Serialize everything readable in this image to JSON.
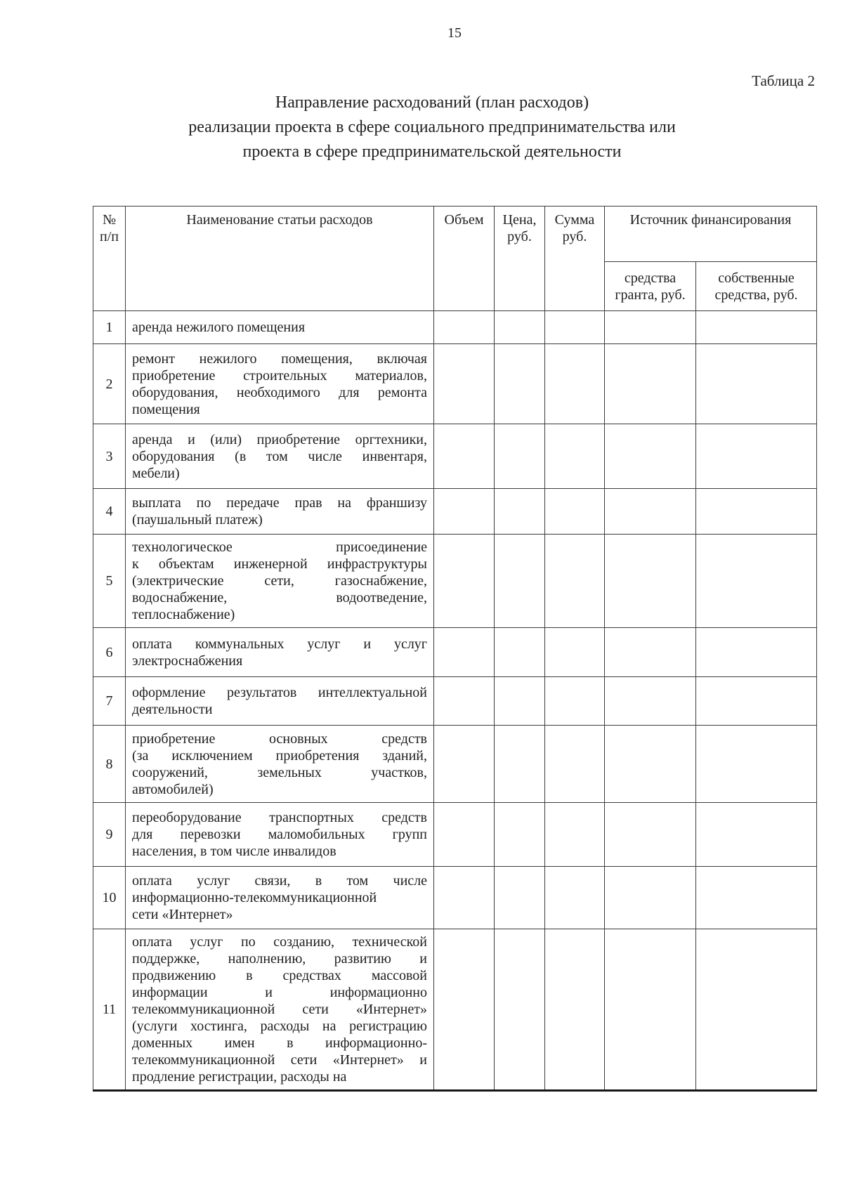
{
  "page": {
    "number": "15",
    "table_label": "Таблица 2"
  },
  "title": {
    "lines": [
      "Направление расходований (план расходов)",
      "реализации проекта в сфере социального предпринимательства или",
      "проекта в сфере предпринимательской деятельности"
    ]
  },
  "table": {
    "header": {
      "num": "№ п/п",
      "name": "Наименование статьи расходов",
      "volume": "Объем",
      "price": "Цена, руб.",
      "sum": "Сумма руб.",
      "funding_source": "Источник финансирования",
      "grant_funds": "средства гранта, руб.",
      "own_funds": "собственные средства, руб."
    },
    "rows": [
      {
        "num": "1",
        "lines": [
          "аренда нежилого помещения"
        ]
      },
      {
        "num": "2",
        "lines": [
          "ремонт нежилого помещения, включая",
          "приобретение строительных материалов,",
          "оборудования, необходимого для ремонта",
          "помещения"
        ]
      },
      {
        "num": "3",
        "lines": [
          "аренда и (или) приобретение оргтехники,",
          "оборудования (в том числе инвентаря,",
          "мебели)"
        ]
      },
      {
        "num": "4",
        "lines": [
          "выплата по передаче прав на франшизу",
          "(паушальный платеж)"
        ]
      },
      {
        "num": "5",
        "lines": [
          "технологическое присоединение",
          "к объектам инженерной инфраструктуры",
          "(электрические сети, газоснабжение,",
          "водоснабжение, водоотведение,",
          "теплоснабжение)"
        ]
      },
      {
        "num": "6",
        "lines": [
          "оплата коммунальных услуг и услуг",
          "электроснабжения"
        ]
      },
      {
        "num": "7",
        "lines": [
          "оформление результатов интеллектуальной",
          "деятельности"
        ]
      },
      {
        "num": "8",
        "lines": [
          "приобретение основных средств",
          "(за исключением приобретения зданий,",
          "сооружений, земельных участков,",
          "автомобилей)"
        ]
      },
      {
        "num": "9",
        "lines": [
          "переоборудование транспортных средств",
          "для перевозки маломобильных групп",
          "населения, в том числе инвалидов"
        ]
      },
      {
        "num": "10",
        "lines": [
          "оплата услуг связи, в том числе",
          "информационно-телекоммуникационной",
          "сети «Интернет»"
        ]
      },
      {
        "num": "11",
        "lines": [
          "оплата услуг по созданию, технической",
          "поддержке, наполнению, развитию и",
          "продвижению в средствах массовой",
          "информации и информационно",
          "телекоммуникационной сети «Интернет»",
          "(услуги хостинга, расходы на регистрацию",
          "доменных имен в информационно-",
          "телекоммуникационной сети «Интернет» и",
          "продление регистрации, расходы на"
        ]
      }
    ]
  }
}
